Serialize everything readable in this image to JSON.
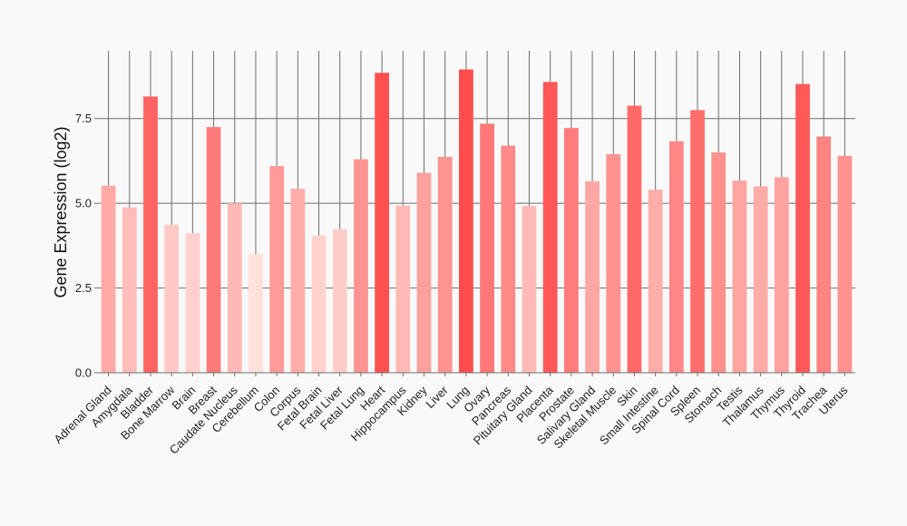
{
  "chart_data": {
    "type": "bar",
    "title": "",
    "xlabel": "",
    "ylabel": "Gene Expression (log2)",
    "ylim": [
      0,
      9.5
    ],
    "yticks": [
      0.0,
      2.5,
      5.0,
      7.5
    ],
    "ytick_labels": [
      "0.0",
      "2.5",
      "5.0",
      "7.5"
    ],
    "grid": true,
    "categories": [
      "Adrenal Gland",
      "Amygdala",
      "Bladder",
      "Bone Marrow",
      "Brain",
      "Breast",
      "Caudate Nucleus",
      "Cerebellum",
      "Colon",
      "Corpus",
      "Fetal Brain",
      "Fetal Liver",
      "Fetal Lung",
      "Heart",
      "Hippocampus",
      "Kidney",
      "Liver",
      "Lung",
      "Ovary",
      "Pancreas",
      "Pituitary Gland",
      "Placenta",
      "Prostate",
      "Salivary Gland",
      "Skeletal Muscle",
      "Skin",
      "Small Intestine",
      "Spinal Cord",
      "Spleen",
      "Stomach",
      "Testis",
      "Thalamus",
      "Thymus",
      "Thyroid",
      "Trachea",
      "Uterus"
    ],
    "values": [
      5.52,
      4.88,
      8.15,
      4.37,
      4.12,
      7.25,
      5.0,
      3.5,
      6.1,
      5.43,
      4.05,
      4.23,
      6.3,
      8.85,
      4.93,
      5.9,
      6.37,
      8.95,
      7.35,
      6.7,
      4.92,
      8.58,
      7.22,
      5.65,
      6.45,
      7.88,
      5.4,
      6.83,
      7.75,
      6.5,
      5.67,
      5.5,
      5.77,
      8.52,
      6.97,
      6.4
    ],
    "colors": {
      "low": "#ffe1dc",
      "high": "#ff4d4d"
    }
  }
}
